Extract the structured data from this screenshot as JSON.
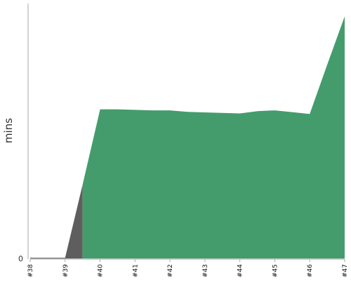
{
  "chart_data": {
    "type": "area",
    "categories": [
      "#38",
      "#39",
      "#40",
      "#41",
      "#42",
      "#43",
      "#44",
      "#45",
      "#46",
      "#47"
    ],
    "ylabel": "mins",
    "ytick_labels": [
      "0"
    ],
    "ylim": [
      0,
      100
    ],
    "colors": {
      "success": "#449c6c",
      "failure": "#5e5e5e",
      "axis": "#aaaaaa"
    },
    "series": [
      {
        "status": "failure",
        "x": [
          0,
          1,
          1.5
        ],
        "values": [
          0.3,
          0.3,
          29
        ]
      },
      {
        "status": "success",
        "x": [
          1.5,
          2,
          2.5,
          3,
          3.5,
          4,
          4.5,
          5,
          5.5,
          6,
          6.5,
          7,
          7.5,
          8,
          8.5,
          9
        ],
        "values": [
          29,
          58.5,
          58.5,
          58.3,
          58.1,
          58.1,
          57.5,
          57.3,
          57.1,
          56.9,
          57.8,
          58.1,
          57.4,
          56.7,
          76,
          95
        ]
      }
    ]
  }
}
